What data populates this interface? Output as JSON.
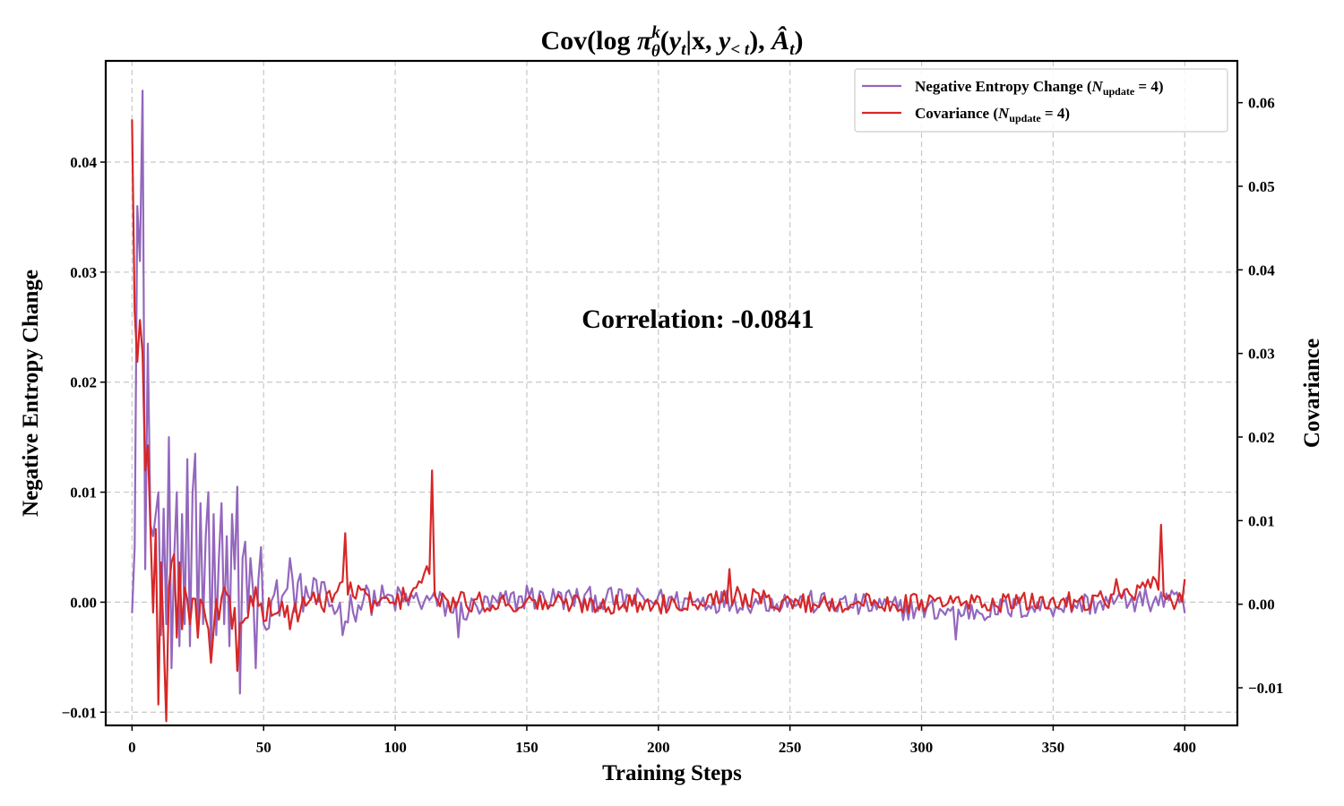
{
  "chart_data": {
    "type": "line",
    "title": "Cov(log π_θ^k(y_t|x, y_<t), Â_t)",
    "title_parts": {
      "pre": "Cov(log ",
      "pi": "π",
      "pi_sup": "k",
      "pi_sub": "θ",
      "open": "(",
      "y": "y",
      "y_sub": "t",
      "bar": "|x, ",
      "y2": "y",
      "y2_sub": "< t",
      "mid": "), ",
      "a": "Â",
      "a_sub": "t",
      "close": ")"
    },
    "xlabel": "Training Steps",
    "ylabel_left": "Negative Entropy Change",
    "ylabel_right": "Covariance",
    "annotation": "Correlation: -0.0841",
    "xlim": [
      -10,
      420
    ],
    "ylim_left": [
      -0.0112,
      0.0492
    ],
    "ylim_right": [
      -0.0145,
      0.065
    ],
    "x_ticks": [
      0,
      50,
      100,
      150,
      200,
      250,
      300,
      350,
      400
    ],
    "x_tick_labels": [
      "0",
      "50",
      "100",
      "150",
      "200",
      "250",
      "300",
      "350",
      "400"
    ],
    "y_left_ticks": [
      -0.01,
      0.0,
      0.01,
      0.02,
      0.03,
      0.04
    ],
    "y_left_tick_labels": [
      "−0.01",
      "0.00",
      "0.01",
      "0.02",
      "0.03",
      "0.04"
    ],
    "y_right_ticks": [
      -0.01,
      0.0,
      0.01,
      0.02,
      0.03,
      0.04,
      0.05,
      0.06
    ],
    "y_right_tick_labels": [
      "−0.01",
      "0.00",
      "0.01",
      "0.02",
      "0.03",
      "0.04",
      "0.05",
      "0.06"
    ],
    "grid": true,
    "legend_position": "top-right",
    "series": [
      {
        "name": "Negative Entropy Change",
        "legend_label": {
          "pre": "Negative Entropy Change (",
          "N": "N",
          "sub": "update",
          "post": " = 4)"
        },
        "color": "#9467bd",
        "axis": "left",
        "x_range": [
          0,
          400
        ],
        "key_points": [
          [
            0,
            -0.001
          ],
          [
            1,
            0.005
          ],
          [
            2,
            0.036
          ],
          [
            3,
            0.031
          ],
          [
            4,
            0.0465
          ],
          [
            5,
            0.003
          ],
          [
            6,
            0.0235
          ],
          [
            7,
            0.007
          ],
          [
            8,
            0.006
          ],
          [
            9,
            0.008
          ],
          [
            10,
            0.01
          ],
          [
            11,
            -0.003
          ],
          [
            12,
            0.0085
          ],
          [
            13,
            -0.002
          ],
          [
            14,
            0.015
          ],
          [
            15,
            -0.006
          ],
          [
            16,
            0.004
          ],
          [
            17,
            0.01
          ],
          [
            18,
            -0.004
          ],
          [
            19,
            0.008
          ],
          [
            20,
            -0.002
          ],
          [
            21,
            0.013
          ],
          [
            22,
            -0.004
          ],
          [
            23,
            0.01
          ],
          [
            24,
            0.0135
          ],
          [
            25,
            -0.003
          ],
          [
            26,
            0.009
          ],
          [
            27,
            -0.002
          ],
          [
            28,
            0.006
          ],
          [
            29,
            0.01
          ],
          [
            30,
            -0.005
          ],
          [
            31,
            0.008
          ],
          [
            32,
            -0.003
          ],
          [
            33,
            0.004
          ],
          [
            34,
            0.009
          ],
          [
            35,
            -0.002
          ],
          [
            36,
            0.006
          ],
          [
            37,
            -0.004
          ],
          [
            38,
            0.008
          ],
          [
            39,
            0.003
          ],
          [
            40,
            0.0105
          ],
          [
            41,
            -0.0083
          ],
          [
            42,
            0.004
          ],
          [
            43,
            0.0055
          ],
          [
            44,
            -0.001
          ],
          [
            45,
            0.004
          ],
          [
            46,
            0.001
          ],
          [
            47,
            -0.006
          ],
          [
            48,
            0.002
          ],
          [
            49,
            0.005
          ],
          [
            50,
            -0.002
          ],
          [
            60,
            0.004
          ],
          [
            70,
            0.002
          ],
          [
            80,
            -0.003
          ],
          [
            90,
            0.001
          ],
          [
            114,
            0.0005
          ],
          [
            124,
            -0.0032
          ],
          [
            150,
            0.0015
          ],
          [
            200,
            0.0006
          ],
          [
            250,
            0.0003
          ],
          [
            313,
            -0.0034
          ],
          [
            380,
            0.0005
          ],
          [
            393,
            0.0008
          ],
          [
            400,
            -0.001
          ]
        ]
      },
      {
        "name": "Covariance",
        "legend_label": {
          "pre": "Covariance (",
          "N": "N",
          "sub": "update",
          "post": " = 4)"
        },
        "color": "#d62728",
        "axis": "right",
        "x_range": [
          0,
          400
        ],
        "key_points": [
          [
            0,
            0.058
          ],
          [
            1,
            0.035
          ],
          [
            2,
            0.029
          ],
          [
            3,
            0.034
          ],
          [
            4,
            0.03
          ],
          [
            5,
            0.016
          ],
          [
            6,
            0.019
          ],
          [
            7,
            0.009
          ],
          [
            8,
            -0.001
          ],
          [
            9,
            0.009
          ],
          [
            10,
            -0.012
          ],
          [
            11,
            0.005
          ],
          [
            12,
            -0.004
          ],
          [
            13,
            -0.014
          ],
          [
            14,
            0.002
          ],
          [
            15,
            0.005
          ],
          [
            16,
            0.006
          ],
          [
            17,
            -0.004
          ],
          [
            18,
            0.005
          ],
          [
            19,
            -0.003
          ],
          [
            20,
            0.002
          ],
          [
            25,
            -0.004
          ],
          [
            30,
            -0.007
          ],
          [
            35,
            0.002
          ],
          [
            40,
            -0.008
          ],
          [
            45,
            0.001
          ],
          [
            50,
            -0.002
          ],
          [
            60,
            -0.003
          ],
          [
            70,
            0.0
          ],
          [
            81,
            0.0085
          ],
          [
            90,
            0.001
          ],
          [
            100,
            0.0
          ],
          [
            114,
            0.016
          ],
          [
            115,
            0.001
          ],
          [
            150,
            0.0005
          ],
          [
            200,
            0.0
          ],
          [
            227,
            0.0042
          ],
          [
            250,
            0.0005
          ],
          [
            300,
            0.0005
          ],
          [
            350,
            0.0008
          ],
          [
            374,
            0.003
          ],
          [
            391,
            0.0095
          ],
          [
            392,
            0.001
          ],
          [
            400,
            0.003
          ]
        ]
      }
    ]
  }
}
